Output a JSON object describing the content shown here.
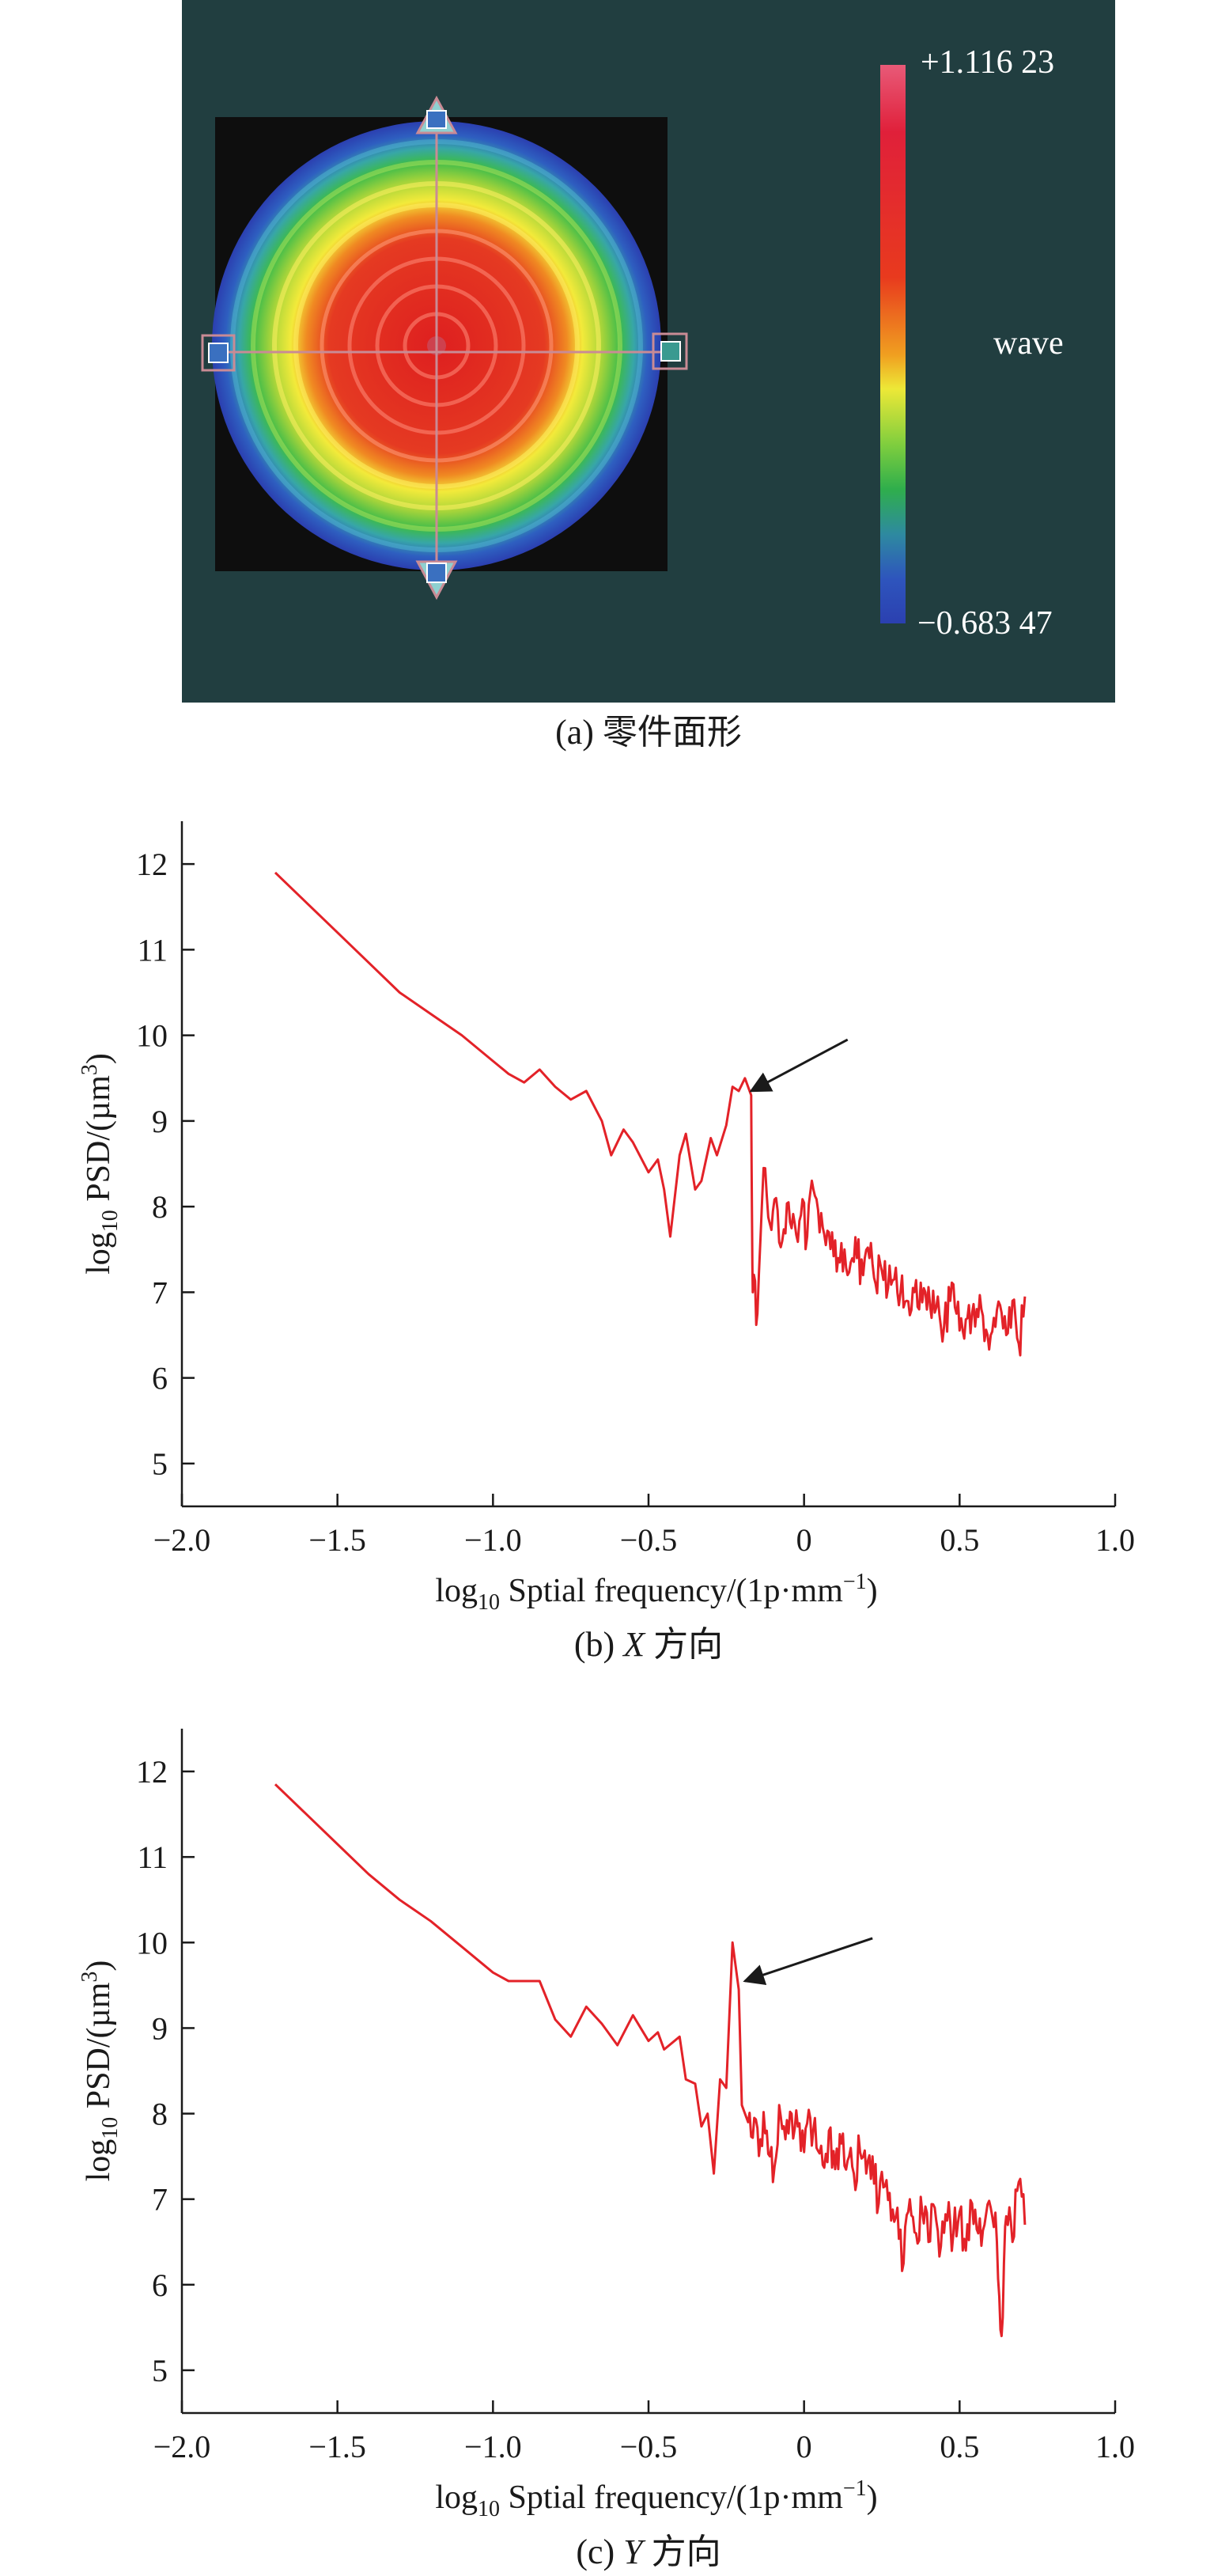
{
  "panel_a": {
    "caption": "(a) 零件面形",
    "colorbar": {
      "max_label": "+1.116 23",
      "min_label": "−0.683 47",
      "unit": "wave"
    },
    "colors": {
      "background": "#213E40",
      "frame": "#0e0e0e",
      "crosshair": "#c98b95"
    }
  },
  "chart_data": [
    {
      "type": "line",
      "caption_prefix": "(b) ",
      "caption_italic": "X",
      "caption_suffix": " 方向",
      "xlabel": "log₁₀ Sptial frequency/(1p·mm⁻¹)",
      "xlabel_main": "log",
      "xlabel_sub": "10",
      "xlabel_rest": " Sptial frequency/(1p·mm",
      "xlabel_sup": "−1",
      "xlabel_close": ")",
      "ylabel": "log₁₀ PSD/(µm³)",
      "ylabel_main": "log",
      "ylabel_sub": "10",
      "ylabel_rest": " PSD/(µm",
      "ylabel_sup": "3",
      "ylabel_close": ")",
      "xlim": [
        -2.0,
        1.0
      ],
      "ylim": [
        4.5,
        12.5
      ],
      "xticks": [
        -2.0,
        -1.5,
        -1.0,
        -0.5,
        0,
        0.5,
        1.0
      ],
      "xtick_labels": [
        "−2.0",
        "−1.5",
        "−1.0",
        "−0.5",
        "0",
        "0.5",
        "1.0"
      ],
      "yticks": [
        5,
        6,
        7,
        8,
        9,
        10,
        11,
        12
      ],
      "ytick_labels": [
        "5",
        "6",
        "7",
        "8",
        "9",
        "10",
        "11",
        "12"
      ],
      "line_color": "#e32228",
      "annotation": {
        "type": "arrow",
        "from": [
          0.14,
          9.95
        ],
        "to": [
          -0.17,
          9.35
        ]
      },
      "noise_range": [
        -0.17,
        0.71
      ],
      "series": [
        {
          "x": [
            -1.7,
            -1.6,
            -1.5,
            -1.4,
            -1.3,
            -1.2,
            -1.1,
            -1.0,
            -0.95,
            -0.9,
            -0.85,
            -0.8,
            -0.75,
            -0.7,
            -0.65,
            -0.62,
            -0.58,
            -0.55,
            -0.5,
            -0.47,
            -0.45,
            -0.43,
            -0.4,
            -0.38,
            -0.35,
            -0.33,
            -0.3,
            -0.28,
            -0.25,
            -0.23,
            -0.21,
            -0.19,
            -0.17,
            -0.165,
            -0.15,
            -0.13,
            -0.11,
            -0.09,
            -0.07,
            -0.05,
            -0.03,
            -0.01,
            0.01,
            0.03,
            0.05,
            0.07,
            0.09,
            0.11,
            0.13,
            0.15,
            0.17,
            0.19,
            0.21,
            0.23,
            0.25,
            0.27,
            0.29,
            0.31,
            0.33,
            0.35,
            0.37,
            0.39,
            0.41,
            0.43,
            0.45,
            0.47,
            0.49,
            0.51,
            0.53,
            0.55,
            0.57,
            0.59,
            0.61,
            0.63,
            0.65,
            0.67,
            0.69,
            0.71
          ],
          "y": [
            11.9,
            11.55,
            11.2,
            10.85,
            10.5,
            10.25,
            10.0,
            9.7,
            9.55,
            9.45,
            9.6,
            9.4,
            9.25,
            9.35,
            9.0,
            8.6,
            8.9,
            8.75,
            8.4,
            8.55,
            8.2,
            7.65,
            8.6,
            8.85,
            8.2,
            8.3,
            8.8,
            8.6,
            8.95,
            9.4,
            9.35,
            9.5,
            9.3,
            7.0,
            6.75,
            8.45,
            7.8,
            8.1,
            7.6,
            8.05,
            7.8,
            7.9,
            7.65,
            8.2,
            7.7,
            7.55,
            7.7,
            7.4,
            7.5,
            7.35,
            7.4,
            7.2,
            7.4,
            7.1,
            7.25,
            7.05,
            7.15,
            7.0,
            6.9,
            7.05,
            6.8,
            7.0,
            6.7,
            6.95,
            6.6,
            6.9,
            6.75,
            6.55,
            6.85,
            6.6,
            6.8,
            6.5,
            6.7,
            6.85,
            6.5,
            6.9,
            6.4,
            6.95
          ]
        }
      ]
    },
    {
      "type": "line",
      "caption_prefix": "(c) ",
      "caption_italic": "Y",
      "caption_suffix": " 方向",
      "xlabel": "log₁₀ Sptial frequency/(1p·mm⁻¹)",
      "xlabel_main": "log",
      "xlabel_sub": "10",
      "xlabel_rest": " Sptial frequency/(1p·mm",
      "xlabel_sup": "−1",
      "xlabel_close": ")",
      "ylabel": "log₁₀ PSD/(µm³)",
      "ylabel_main": "log",
      "ylabel_sub": "10",
      "ylabel_rest": " PSD/(µm",
      "ylabel_sup": "3",
      "ylabel_close": ")",
      "xlim": [
        -2.0,
        1.0
      ],
      "ylim": [
        4.5,
        12.5
      ],
      "xticks": [
        -2.0,
        -1.5,
        -1.0,
        -0.5,
        0,
        0.5,
        1.0
      ],
      "xtick_labels": [
        "−2.0",
        "−1.5",
        "−1.0",
        "−0.5",
        "0",
        "0.5",
        "1.0"
      ],
      "yticks": [
        5,
        6,
        7,
        8,
        9,
        10,
        11,
        12
      ],
      "ytick_labels": [
        "5",
        "6",
        "7",
        "8",
        "9",
        "10",
        "11",
        "12"
      ],
      "line_color": "#e32228",
      "annotation": {
        "type": "arrow",
        "from": [
          0.22,
          10.05
        ],
        "to": [
          -0.19,
          9.55
        ]
      },
      "noise_range": [
        -0.18,
        0.71
      ],
      "series": [
        {
          "x": [
            -1.7,
            -1.6,
            -1.5,
            -1.4,
            -1.3,
            -1.2,
            -1.1,
            -1.0,
            -0.95,
            -0.9,
            -0.85,
            -0.8,
            -0.75,
            -0.7,
            -0.65,
            -0.6,
            -0.55,
            -0.5,
            -0.47,
            -0.45,
            -0.4,
            -0.38,
            -0.35,
            -0.33,
            -0.31,
            -0.29,
            -0.27,
            -0.25,
            -0.23,
            -0.21,
            -0.2,
            -0.18,
            -0.16,
            -0.14,
            -0.12,
            -0.1,
            -0.08,
            -0.06,
            -0.04,
            -0.02,
            0.0,
            0.02,
            0.04,
            0.06,
            0.08,
            0.1,
            0.12,
            0.14,
            0.16,
            0.18,
            0.2,
            0.22,
            0.24,
            0.26,
            0.28,
            0.3,
            0.32,
            0.34,
            0.36,
            0.38,
            0.4,
            0.42,
            0.44,
            0.46,
            0.48,
            0.5,
            0.52,
            0.54,
            0.56,
            0.58,
            0.6,
            0.62,
            0.635,
            0.65,
            0.67,
            0.69,
            0.71
          ],
          "y": [
            11.85,
            11.5,
            11.15,
            10.8,
            10.5,
            10.25,
            9.95,
            9.65,
            9.55,
            9.55,
            9.55,
            9.1,
            8.9,
            9.25,
            9.05,
            8.8,
            9.15,
            8.85,
            8.95,
            8.75,
            8.9,
            8.4,
            8.35,
            7.85,
            8.0,
            7.3,
            8.4,
            8.3,
            10.0,
            9.45,
            8.1,
            7.9,
            7.95,
            7.7,
            7.8,
            7.2,
            8.1,
            7.7,
            8.0,
            7.85,
            7.55,
            7.95,
            7.6,
            7.4,
            7.8,
            7.35,
            7.65,
            7.45,
            7.3,
            7.55,
            7.3,
            7.5,
            6.95,
            7.15,
            6.75,
            6.9,
            6.25,
            7.0,
            6.6,
            6.85,
            6.5,
            6.9,
            6.45,
            6.75,
            6.6,
            6.85,
            6.4,
            6.95,
            6.6,
            6.7,
            6.9,
            6.5,
            5.4,
            6.8,
            6.5,
            7.2,
            6.7
          ]
        }
      ]
    }
  ]
}
